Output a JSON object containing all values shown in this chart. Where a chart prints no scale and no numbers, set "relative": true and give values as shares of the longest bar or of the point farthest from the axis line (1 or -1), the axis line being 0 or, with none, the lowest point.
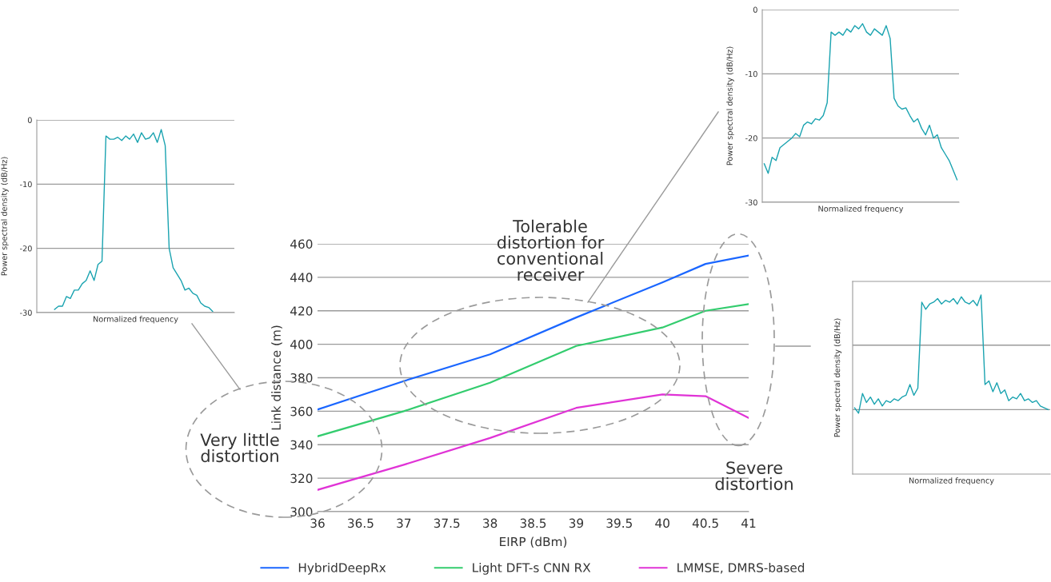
{
  "chart_data": [
    {
      "type": "line",
      "ylabel": "Power spectral density (dB/Hz)",
      "xlabel": "Normalized frequency",
      "categories": [
        null,
        null,
        null,
        null,
        null,
        null,
        null,
        null,
        null,
        null,
        null,
        null,
        null,
        null,
        null,
        null,
        null,
        null,
        null,
        null,
        null,
        null,
        null,
        null,
        null,
        null,
        null,
        null,
        null,
        null,
        null,
        null,
        null,
        null,
        null,
        null,
        null,
        null,
        null,
        null,
        null,
        null,
        null,
        null,
        null,
        null,
        null,
        null,
        null,
        null
      ],
      "series": [
        {
          "color": "#1aa3b0",
          "values": [
            null,
            null,
            null,
            null,
            -29.5,
            -29,
            -29,
            -27.5,
            -27.8,
            -26.5,
            -26.5,
            -25.5,
            -25,
            -23.5,
            -25,
            -22.5,
            -22,
            -2.5,
            -3,
            -3,
            -2.7,
            -3.2,
            -2.5,
            -3,
            -2.2,
            -3.5,
            -2,
            -3,
            -2.8,
            -2,
            -3.5,
            -1.5,
            -4,
            -20,
            -23,
            -24,
            -25,
            -26.5,
            -26.2,
            -27,
            -27.3,
            -28.5,
            -29,
            -29.2,
            -29.8,
            null,
            null,
            null,
            null,
            null
          ]
        }
      ],
      "ylim": [
        -30,
        0
      ],
      "yticks": [
        0,
        -10,
        -20,
        -30
      ],
      "grid": "y",
      "tick_labels": "y",
      "legend": false
    },
    {
      "type": "line",
      "xlabel": "EIRP (dBm)",
      "ylabel": "Link distance (m)",
      "x": [
        36,
        37,
        38,
        39,
        40,
        40.5,
        41
      ],
      "series": [
        {
          "name": "HybridDeepRx",
          "color": "#1a66ff",
          "values": [
            361,
            378,
            394,
            416,
            437,
            448,
            453
          ]
        },
        {
          "name": "Light DFT-s CNN RX",
          "color": "#33cc6e",
          "values": [
            345,
            360,
            377,
            399,
            410,
            420,
            424
          ]
        },
        {
          "name": "LMMSE, DMRS-based",
          "color": "#e033d6",
          "values": [
            313,
            328,
            344,
            362,
            370,
            369,
            356
          ]
        }
      ],
      "xlim": [
        36,
        41
      ],
      "xticks": [
        36,
        36.5,
        37,
        37.5,
        38,
        38.5,
        39,
        39.5,
        40,
        40.5,
        41
      ],
      "ylim": [
        300,
        460
      ],
      "yticks": [
        300,
        320,
        340,
        360,
        380,
        400,
        420,
        440,
        460
      ],
      "grid": "y",
      "legend": "bottom",
      "annotations": [
        "Very little\ndistortion",
        "Tolerable\ndistortion for\nconventional\nreceiver",
        "Severe\ndistortion"
      ]
    },
    {
      "type": "line",
      "ylabel": "Power spectral density (dB/Hz)",
      "xlabel": "Normalized frequency",
      "categories": [
        null,
        null,
        null,
        null,
        null,
        null,
        null,
        null,
        null,
        null,
        null,
        null,
        null,
        null,
        null,
        null,
        null,
        null,
        null,
        null,
        null,
        null,
        null,
        null,
        null,
        null,
        null,
        null,
        null,
        null,
        null,
        null,
        null,
        null,
        null,
        null,
        null,
        null,
        null,
        null,
        null,
        null,
        null,
        null,
        null,
        null,
        null,
        null,
        null,
        null
      ],
      "series": [
        {
          "color": "#1aa3b0",
          "values": [
            -24,
            -25.5,
            -23,
            -23.5,
            -21.5,
            -21,
            -20.5,
            -20,
            -19.3,
            -19.8,
            -18,
            -17.5,
            -17.8,
            -17,
            -17.2,
            -16.5,
            -14.5,
            -3.5,
            -4,
            -3.5,
            -4,
            -3,
            -3.5,
            -2.5,
            -3,
            -2.2,
            -3.5,
            -4,
            -3,
            -3.5,
            -4,
            -2.5,
            -4.5,
            -13.8,
            -15,
            -15.5,
            -15.3,
            -16.5,
            -17.5,
            -17,
            -18.5,
            -19.5,
            -18,
            -20,
            -19.5,
            -21.5,
            -22.5,
            -23.5,
            -25,
            -26.5
          ]
        }
      ],
      "ylim": [
        -30,
        0
      ],
      "yticks": [
        0,
        -10,
        -20,
        -30
      ],
      "grid": "y",
      "tick_labels": "y",
      "legend": false
    },
    {
      "type": "line",
      "ylabel": "Power spectral density (dB/Hz)",
      "xlabel": "Normalized frequency",
      "relative": true,
      "categories": [
        null,
        null,
        null,
        null,
        null,
        null,
        null,
        null,
        null,
        null,
        null,
        null,
        null,
        null,
        null,
        null,
        null,
        null,
        null,
        null,
        null,
        null,
        null,
        null,
        null,
        null,
        null,
        null,
        null,
        null,
        null,
        null,
        null,
        null,
        null,
        null,
        null,
        null,
        null,
        null,
        null,
        null,
        null,
        null,
        null,
        null,
        null,
        null,
        null,
        null
      ],
      "series": [
        {
          "color": "#1aa3b0",
          "values": [
            0.37,
            0.34,
            0.45,
            0.4,
            0.43,
            0.39,
            0.42,
            0.38,
            0.41,
            0.4,
            0.42,
            0.41,
            0.43,
            0.44,
            0.5,
            0.44,
            0.48,
            0.96,
            0.92,
            0.95,
            0.96,
            0.98,
            0.95,
            0.97,
            0.96,
            0.98,
            0.95,
            0.99,
            0.96,
            0.95,
            0.97,
            0.94,
            1.0,
            0.5,
            0.52,
            0.46,
            0.51,
            0.45,
            0.47,
            0.41,
            0.43,
            0.42,
            0.45,
            0.41,
            0.42,
            0.4,
            0.41,
            0.38,
            0.37,
            0.36
          ]
        }
      ],
      "ref_lines": [
        {
          "axis": "y",
          "value": 0.36,
          "color": "#9a9a9a"
        },
        {
          "axis": "y",
          "value": 0.72,
          "color": "#9a9a9a"
        }
      ],
      "tick_labels": false,
      "legend": false
    }
  ]
}
